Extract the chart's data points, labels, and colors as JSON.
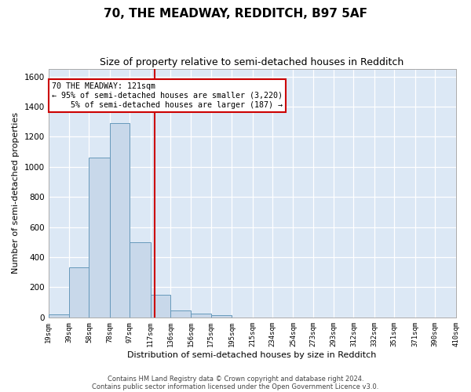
{
  "title1": "70, THE MEADWAY, REDDITCH, B97 5AF",
  "title2": "Size of property relative to semi-detached houses in Redditch",
  "xlabel": "Distribution of semi-detached houses by size in Redditch",
  "ylabel": "Number of semi-detached properties",
  "bar_color": "#c8d8ea",
  "bar_edge_color": "#6699bb",
  "property_line_x": 121,
  "property_line_color": "#cc0000",
  "annotation_line1": "70 THE MEADWAY: 121sqm",
  "annotation_line2": "← 95% of semi-detached houses are smaller (3,220)",
  "annotation_line3": "    5% of semi-detached houses are larger (187) →",
  "annotation_box_color": "white",
  "annotation_box_edge_color": "#cc0000",
  "bin_edges": [
    19,
    39,
    58,
    78,
    97,
    117,
    136,
    156,
    175,
    195,
    215,
    234,
    254,
    273,
    293,
    312,
    332,
    351,
    371,
    390,
    410
  ],
  "bin_counts": [
    20,
    330,
    1060,
    1290,
    500,
    150,
    45,
    25,
    15,
    0,
    0,
    0,
    0,
    0,
    0,
    0,
    0,
    0,
    0,
    0
  ],
  "ylim": [
    0,
    1650
  ],
  "yticks": [
    0,
    200,
    400,
    600,
    800,
    1000,
    1200,
    1400,
    1600
  ],
  "footer1": "Contains HM Land Registry data © Crown copyright and database right 2024.",
  "footer2": "Contains public sector information licensed under the Open Government Licence v3.0.",
  "fig_bg_color": "#ffffff",
  "plot_bg_color": "#dce8f5",
  "grid_color": "#ffffff",
  "title1_fontsize": 11,
  "title2_fontsize": 9
}
